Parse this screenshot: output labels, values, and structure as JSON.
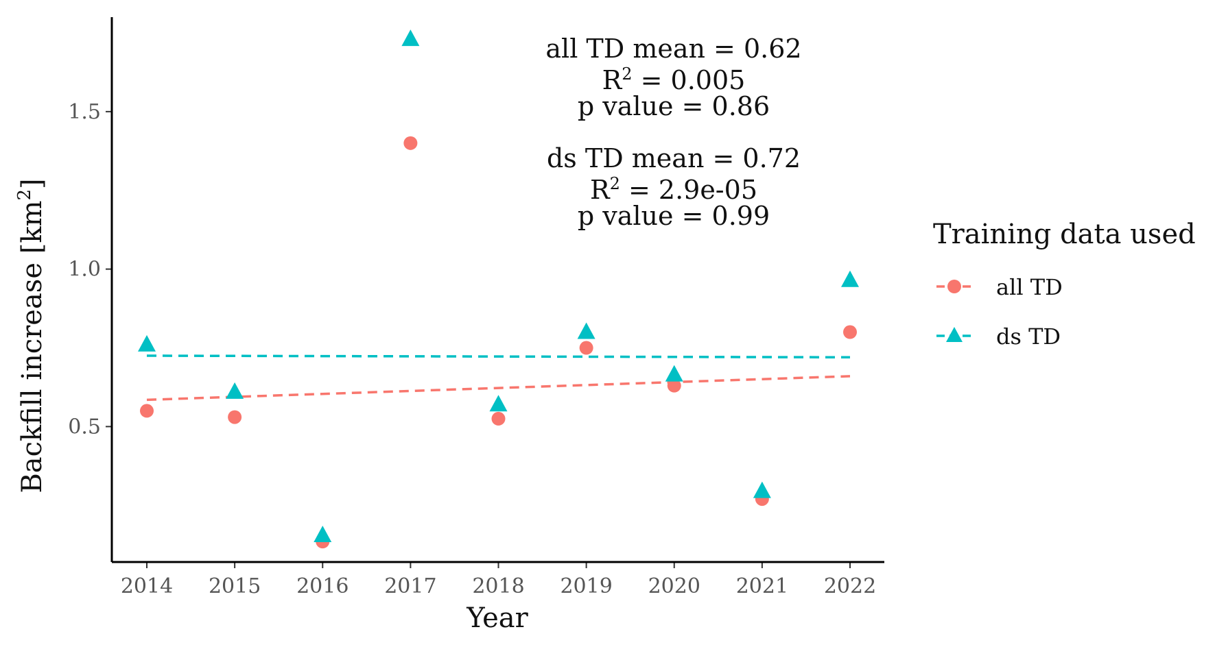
{
  "chart_data": {
    "type": "scatter",
    "xlabel": "Year",
    "ylabel": "Backfill increase [km",
    "ylabel_sup": "2",
    "ylabel_end": "]",
    "x": [
      2014,
      2015,
      2016,
      2017,
      2018,
      2019,
      2020,
      2021,
      2022
    ],
    "x_ticks": [
      "2014",
      "2015",
      "2016",
      "2017",
      "2018",
      "2019",
      "2020",
      "2021",
      "2022"
    ],
    "y_ticks": [
      0.5,
      1.0,
      1.5
    ],
    "y_tick_labels": [
      "0.5",
      "1.0",
      "1.5"
    ],
    "ylim": [
      0.07,
      1.8
    ],
    "xlim": [
      2013.6,
      2022.4
    ],
    "grid": false,
    "legend": {
      "title": "Training data used",
      "position": "right"
    },
    "series": [
      {
        "name": "all TD",
        "marker": "circle",
        "color": "#F8766D",
        "values": [
          0.55,
          0.53,
          0.135,
          1.4,
          0.525,
          0.75,
          0.63,
          0.27,
          0.8
        ],
        "trend": [
          0.585,
          0.66
        ]
      },
      {
        "name": "ds TD",
        "marker": "triangle",
        "color": "#00BFC4",
        "values": [
          0.76,
          0.61,
          0.155,
          1.73,
          0.57,
          0.8,
          0.665,
          0.295,
          0.965
        ],
        "trend": [
          0.725,
          0.72
        ]
      }
    ],
    "annotations": {
      "all": {
        "mean_line": "all TD mean = 0.62",
        "r2_prefix": "R",
        "r2_sup": "2",
        "r2_value": " = 0.005",
        "p_line": "p value = 0.86"
      },
      "ds": {
        "mean_line": "ds TD mean = 0.72",
        "r2_prefix": "R",
        "r2_sup": "2",
        "r2_value": " = 2.9e-05",
        "p_line": "p value = 0.99"
      }
    }
  }
}
